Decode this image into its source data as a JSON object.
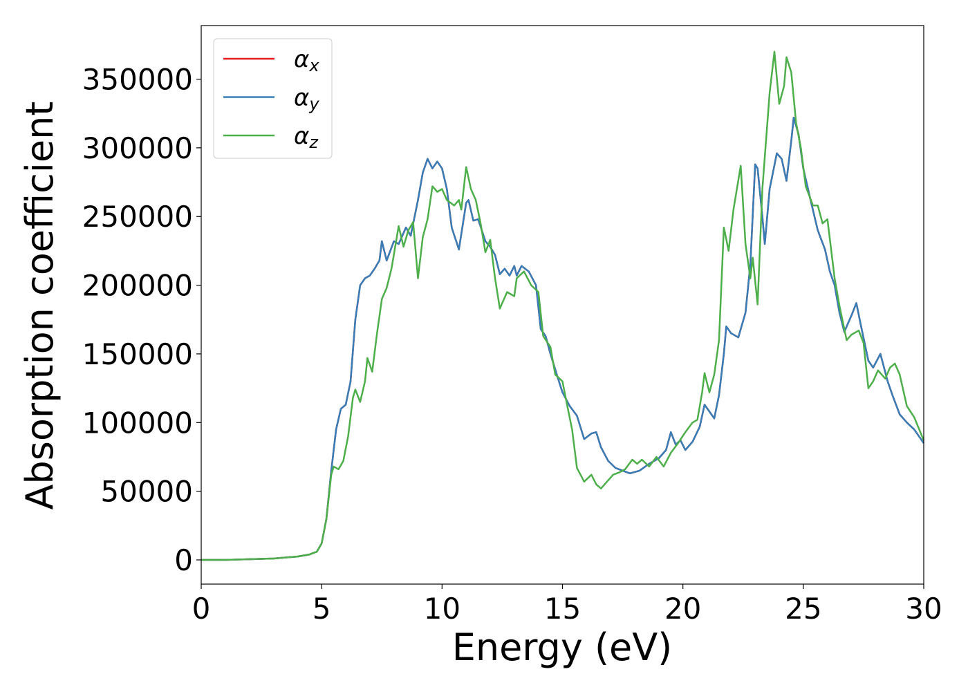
{
  "chart_data": {
    "type": "line",
    "xlabel": "Energy (eV)",
    "ylabel": "Absorption coefficient",
    "xlim": [
      0,
      30
    ],
    "xticks": [
      0,
      5,
      10,
      15,
      20,
      25,
      30
    ],
    "ylim": [
      -17600,
      389000
    ],
    "yticks": [
      0,
      50000,
      100000,
      150000,
      200000,
      250000,
      300000,
      350000
    ],
    "legend": "upper left",
    "series": [
      {
        "name": "αx",
        "color": "#e41a1c",
        "x": [
          0,
          1,
          2,
          3,
          4,
          4.5,
          4.8,
          5,
          5.2,
          5.4,
          5.6,
          5.8,
          6.0,
          6.2,
          6.4,
          6.6,
          6.8,
          7.0,
          7.2,
          7.4,
          7.5,
          7.7,
          8.0,
          8.2,
          8.5,
          8.7,
          9.0,
          9.2,
          9.4,
          9.6,
          9.8,
          10.0,
          10.2,
          10.4,
          10.7,
          11.0,
          11.1,
          11.3,
          11.5,
          11.8,
          12.0,
          12.2,
          12.4,
          12.6,
          12.8,
          13.0,
          13.1,
          13.3,
          13.6,
          13.9,
          14.1,
          14.3,
          14.5,
          14.8,
          15.0,
          15.3,
          15.6,
          15.9,
          16.2,
          16.4,
          16.6,
          16.9,
          17.2,
          17.5,
          17.8,
          18.2,
          18.6,
          19.0,
          19.3,
          19.5,
          19.7,
          19.9,
          20.1,
          20.4,
          20.7,
          20.9,
          21.1,
          21.3,
          21.5,
          21.7,
          21.8,
          22.0,
          22.3,
          22.6,
          22.8,
          23.0,
          23.1,
          23.3,
          23.4,
          23.6,
          23.9,
          24.1,
          24.3,
          24.5,
          24.6,
          24.8,
          25.0,
          25.3,
          25.6,
          25.9,
          26.1,
          26.3,
          26.5,
          26.7,
          27.0,
          27.2,
          27.4,
          27.7,
          27.9,
          28.2,
          28.5,
          28.7,
          29.0,
          29.3,
          29.6,
          30
        ],
        "values": [
          0,
          0,
          500,
          1000,
          2500,
          4000,
          6000,
          12000,
          30000,
          65000,
          95000,
          110000,
          113000,
          130000,
          175000,
          200000,
          205000,
          207000,
          212000,
          218000,
          232000,
          218000,
          232000,
          230000,
          242000,
          236000,
          262000,
          282000,
          292000,
          285000,
          290000,
          285000,
          270000,
          242000,
          226000,
          260000,
          262000,
          247000,
          248000,
          232000,
          228000,
          222000,
          208000,
          212000,
          207000,
          214000,
          207000,
          214000,
          210000,
          200000,
          168000,
          163000,
          150000,
          133000,
          122000,
          112000,
          105000,
          88000,
          92000,
          93000,
          82000,
          72000,
          67000,
          65000,
          63000,
          65000,
          70000,
          74000,
          80000,
          93000,
          84000,
          87000,
          80000,
          86000,
          97000,
          113000,
          108000,
          103000,
          120000,
          150000,
          170000,
          165000,
          162000,
          180000,
          215000,
          288000,
          285000,
          250000,
          230000,
          270000,
          296000,
          292000,
          276000,
          305000,
          322000,
          310000,
          285000,
          262000,
          240000,
          226000,
          210000,
          200000,
          180000,
          166000,
          178000,
          187000,
          170000,
          145000,
          140000,
          150000,
          130000,
          120000,
          106000,
          100000,
          95000,
          85000
        ]
      },
      {
        "name": "αy",
        "color": "#377eb8",
        "x": [
          0,
          1,
          2,
          3,
          4,
          4.5,
          4.8,
          5,
          5.2,
          5.4,
          5.6,
          5.8,
          6.0,
          6.2,
          6.4,
          6.6,
          6.8,
          7.0,
          7.2,
          7.4,
          7.5,
          7.7,
          8.0,
          8.2,
          8.5,
          8.7,
          9.0,
          9.2,
          9.4,
          9.6,
          9.8,
          10.0,
          10.2,
          10.4,
          10.7,
          11.0,
          11.1,
          11.3,
          11.5,
          11.8,
          12.0,
          12.2,
          12.4,
          12.6,
          12.8,
          13.0,
          13.1,
          13.3,
          13.6,
          13.9,
          14.1,
          14.3,
          14.5,
          14.8,
          15.0,
          15.3,
          15.6,
          15.9,
          16.2,
          16.4,
          16.6,
          16.9,
          17.2,
          17.5,
          17.8,
          18.2,
          18.6,
          19.0,
          19.3,
          19.5,
          19.7,
          19.9,
          20.1,
          20.4,
          20.7,
          20.9,
          21.1,
          21.3,
          21.5,
          21.7,
          21.8,
          22.0,
          22.3,
          22.6,
          22.8,
          23.0,
          23.1,
          23.3,
          23.4,
          23.6,
          23.9,
          24.1,
          24.3,
          24.5,
          24.6,
          24.8,
          25.0,
          25.3,
          25.6,
          25.9,
          26.1,
          26.3,
          26.5,
          26.7,
          27.0,
          27.2,
          27.4,
          27.7,
          27.9,
          28.2,
          28.5,
          28.7,
          29.0,
          29.3,
          29.6,
          30
        ],
        "values": [
          0,
          0,
          500,
          1000,
          2500,
          4000,
          6000,
          12000,
          30000,
          65000,
          95000,
          110000,
          113000,
          130000,
          175000,
          200000,
          205000,
          207000,
          212000,
          218000,
          232000,
          218000,
          232000,
          230000,
          242000,
          236000,
          262000,
          282000,
          292000,
          285000,
          290000,
          285000,
          270000,
          242000,
          226000,
          260000,
          262000,
          247000,
          248000,
          232000,
          228000,
          222000,
          208000,
          212000,
          207000,
          214000,
          207000,
          214000,
          210000,
          200000,
          168000,
          163000,
          150000,
          133000,
          122000,
          112000,
          105000,
          88000,
          92000,
          93000,
          82000,
          72000,
          67000,
          65000,
          63000,
          65000,
          70000,
          74000,
          80000,
          93000,
          84000,
          87000,
          80000,
          86000,
          97000,
          113000,
          108000,
          103000,
          120000,
          150000,
          170000,
          165000,
          162000,
          180000,
          215000,
          288000,
          285000,
          250000,
          230000,
          270000,
          296000,
          292000,
          276000,
          305000,
          322000,
          310000,
          285000,
          262000,
          240000,
          226000,
          210000,
          200000,
          180000,
          166000,
          178000,
          187000,
          170000,
          145000,
          140000,
          150000,
          130000,
          120000,
          106000,
          100000,
          95000,
          85000
        ]
      },
      {
        "name": "αz",
        "color": "#4daf4a",
        "x": [
          0,
          1,
          2,
          3,
          4,
          4.5,
          4.8,
          5,
          5.2,
          5.4,
          5.5,
          5.7,
          5.9,
          6.1,
          6.3,
          6.4,
          6.6,
          6.8,
          6.9,
          7.1,
          7.3,
          7.5,
          7.7,
          7.9,
          8.2,
          8.4,
          8.6,
          8.8,
          9.0,
          9.2,
          9.4,
          9.6,
          9.8,
          10.0,
          10.2,
          10.5,
          10.7,
          10.8,
          11.0,
          11.2,
          11.4,
          11.6,
          11.8,
          12.0,
          12.2,
          12.4,
          12.7,
          13.0,
          13.1,
          13.4,
          13.7,
          14.0,
          14.2,
          14.5,
          14.7,
          15.0,
          15.2,
          15.4,
          15.6,
          15.9,
          16.2,
          16.4,
          16.6,
          16.9,
          17.1,
          17.4,
          17.6,
          17.9,
          18.1,
          18.3,
          18.6,
          18.9,
          19.2,
          19.5,
          19.8,
          20.1,
          20.4,
          20.6,
          20.8,
          20.9,
          21.1,
          21.3,
          21.5,
          21.7,
          21.9,
          22.1,
          22.4,
          22.6,
          22.8,
          22.9,
          23.1,
          23.3,
          23.6,
          23.8,
          24.0,
          24.2,
          24.3,
          24.5,
          24.7,
          24.9,
          25.1,
          25.4,
          25.6,
          25.8,
          26.0,
          26.3,
          26.5,
          26.8,
          27.0,
          27.3,
          27.5,
          27.7,
          27.9,
          28.1,
          28.4,
          28.6,
          28.8,
          29.0,
          29.3,
          29.6,
          30
        ],
        "values": [
          0,
          0,
          500,
          1000,
          2500,
          4000,
          6000,
          12000,
          30000,
          62000,
          68000,
          66000,
          72000,
          90000,
          118000,
          124000,
          115000,
          130000,
          147000,
          137000,
          165000,
          190000,
          198000,
          212000,
          243000,
          228000,
          240000,
          246000,
          205000,
          235000,
          248000,
          272000,
          268000,
          270000,
          262000,
          258000,
          262000,
          255000,
          286000,
          270000,
          262000,
          245000,
          224000,
          233000,
          205000,
          183000,
          195000,
          192000,
          205000,
          210000,
          200000,
          195000,
          163000,
          155000,
          135000,
          130000,
          112000,
          95000,
          67000,
          57000,
          62000,
          55000,
          52000,
          58000,
          62000,
          64000,
          66000,
          73000,
          70000,
          73000,
          68000,
          75000,
          68000,
          78000,
          85000,
          93000,
          100000,
          102000,
          122000,
          136000,
          122000,
          135000,
          160000,
          242000,
          225000,
          255000,
          287000,
          230000,
          205000,
          220000,
          186000,
          270000,
          340000,
          370000,
          332000,
          345000,
          366000,
          355000,
          318000,
          300000,
          272000,
          258000,
          258000,
          245000,
          248000,
          205000,
          185000,
          160000,
          164000,
          167000,
          158000,
          125000,
          130000,
          138000,
          132000,
          140000,
          143000,
          135000,
          112000,
          104000,
          87000
        ]
      }
    ]
  }
}
